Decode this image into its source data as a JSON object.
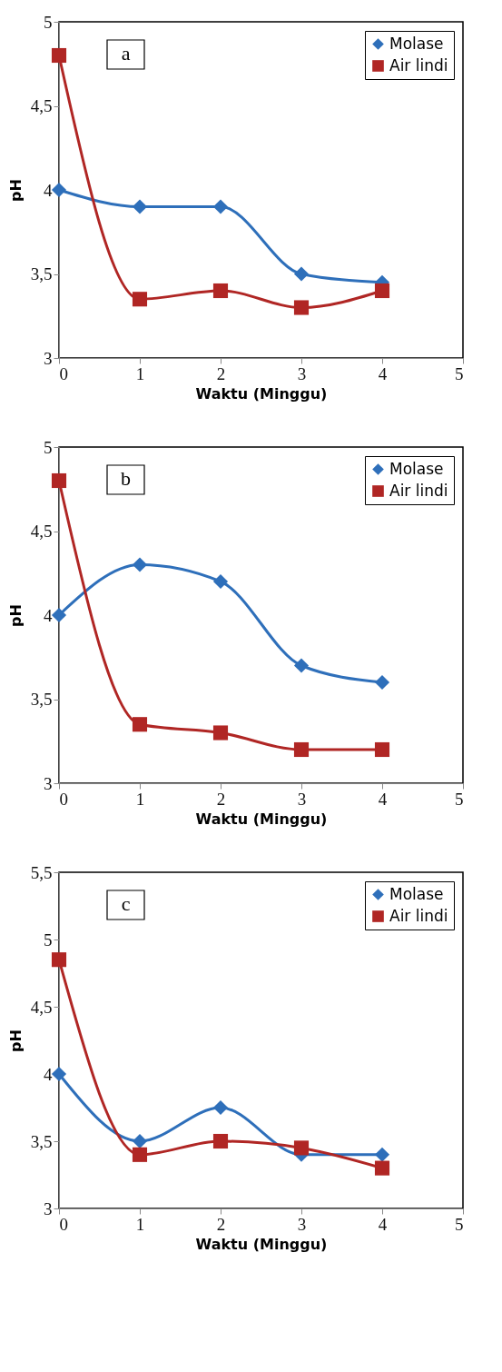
{
  "chart_data": [
    {
      "type": "line",
      "annotations": [
        "a"
      ],
      "xlabel": "Waktu (Minggu)",
      "ylabel": "pH",
      "x": [
        0,
        1,
        2,
        3,
        4
      ],
      "xlim": [
        0,
        5
      ],
      "xticks": [
        0,
        1,
        2,
        3,
        4,
        5
      ],
      "ylim": [
        3,
        5
      ],
      "yticks": [
        3,
        {
          "value": 3.5,
          "label": "3,5"
        },
        4,
        {
          "value": 4.5,
          "label": "4,5"
        },
        5
      ],
      "grid": false,
      "legend": "top right",
      "line_style": "solid",
      "series": [
        {
          "name": "Molase",
          "color": "#2e6fba",
          "marker": "diamond",
          "values": [
            4.0,
            3.9,
            3.9,
            3.5,
            3.45
          ]
        },
        {
          "name": "Air lindi",
          "color": "#b02624",
          "marker": "square",
          "values": [
            4.8,
            3.35,
            3.4,
            3.3,
            3.4
          ]
        }
      ]
    },
    {
      "type": "line",
      "annotations": [
        "b"
      ],
      "xlabel": "Waktu (Minggu)",
      "ylabel": "pH",
      "x": [
        0,
        1,
        2,
        3,
        4
      ],
      "xlim": [
        0,
        5
      ],
      "xticks": [
        0,
        1,
        2,
        3,
        4,
        5
      ],
      "ylim": [
        3,
        5
      ],
      "yticks": [
        3,
        {
          "value": 3.5,
          "label": "3,5"
        },
        4,
        {
          "value": 4.5,
          "label": "4,5"
        },
        5
      ],
      "grid": false,
      "legend": "top right",
      "line_style": "solid",
      "series": [
        {
          "name": "Molase",
          "color": "#2e6fba",
          "marker": "diamond",
          "values": [
            4.0,
            4.3,
            4.2,
            3.7,
            3.6
          ]
        },
        {
          "name": "Air lindi",
          "color": "#b02624",
          "marker": "square",
          "values": [
            4.8,
            3.35,
            3.3,
            3.2,
            3.2
          ]
        }
      ]
    },
    {
      "type": "line",
      "annotations": [
        "c"
      ],
      "xlabel": "Waktu (Minggu)",
      "ylabel": "pH",
      "x": [
        0,
        1,
        2,
        3,
        4
      ],
      "xlim": [
        0,
        5
      ],
      "xticks": [
        0,
        1,
        2,
        3,
        4,
        5
      ],
      "ylim": [
        3,
        5.5
      ],
      "yticks": [
        3,
        {
          "value": 3.5,
          "label": "3,5"
        },
        4,
        {
          "value": 4.5,
          "label": "4,5"
        },
        5,
        {
          "value": 5.5,
          "label": "5,5"
        }
      ],
      "grid": false,
      "legend": "top right",
      "line_style": "solid",
      "series": [
        {
          "name": "Molase",
          "color": "#2e6fba",
          "marker": "diamond",
          "values": [
            4.0,
            3.5,
            3.75,
            3.4,
            3.4
          ]
        },
        {
          "name": "Air lindi",
          "color": "#b02624",
          "marker": "square",
          "values": [
            4.85,
            3.4,
            3.5,
            3.45,
            3.3
          ]
        }
      ]
    }
  ]
}
